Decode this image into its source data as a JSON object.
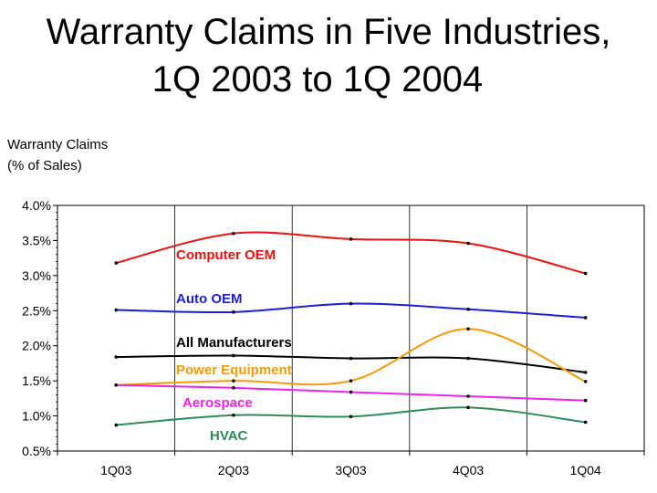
{
  "chart_data": {
    "type": "line",
    "title_line1": "Warranty Claims in Five Industries,",
    "title_line2": "1Q 2003 to 1Q 2004",
    "ylabel_line1": "Warranty Claims",
    "ylabel_line2": "(% of Sales)",
    "categories": [
      "1Q03",
      "2Q03",
      "3Q03",
      "4Q03",
      "1Q04"
    ],
    "ylim": [
      0.5,
      4.0
    ],
    "yticks": [
      {
        "value": 4.0,
        "label": "4.0%"
      },
      {
        "value": 3.5,
        "label": "3.5%"
      },
      {
        "value": 3.0,
        "label": "3.0%"
      },
      {
        "value": 2.5,
        "label": "2.5%"
      },
      {
        "value": 2.0,
        "label": "2.0%"
      },
      {
        "value": 1.5,
        "label": "1.5%"
      },
      {
        "value": 1.0,
        "label": "1.0%"
      },
      {
        "value": 0.5,
        "label": "0.5%"
      }
    ],
    "grid": "vertical",
    "series": [
      {
        "name": "Computer OEM",
        "color": "#e8130f",
        "values": [
          3.18,
          3.6,
          3.52,
          3.46,
          3.03
        ]
      },
      {
        "name": "Auto OEM",
        "color": "#1f1fd0",
        "values": [
          2.51,
          2.48,
          2.6,
          2.52,
          2.4
        ]
      },
      {
        "name": "All Manufacturers",
        "color": "#000000",
        "values": [
          1.84,
          1.86,
          1.82,
          1.82,
          1.62
        ]
      },
      {
        "name": "Power Equipment",
        "color": "#f39a07",
        "values": [
          1.44,
          1.5,
          1.5,
          2.24,
          1.49
        ]
      },
      {
        "name": "Aerospace",
        "color": "#ee22ee",
        "values": [
          1.44,
          1.4,
          1.34,
          1.28,
          1.22
        ]
      },
      {
        "name": "HVAC",
        "color": "#2e8b57",
        "values": [
          0.87,
          1.01,
          0.99,
          1.12,
          0.91
        ]
      }
    ]
  }
}
